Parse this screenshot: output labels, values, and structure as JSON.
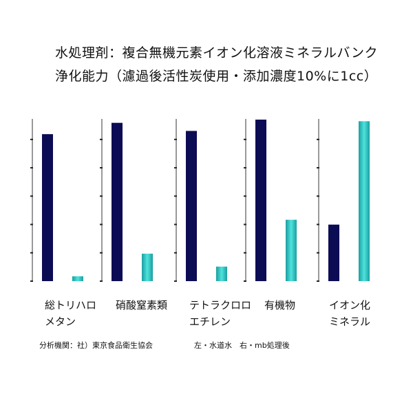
{
  "title_line1": "水処理剤：複合無機元素イオン化溶液ミネラルバンク",
  "title_line2": "浄化能力（濾過後活性炭使用・添加濃度10%に1cc）",
  "colors": {
    "left_bar": "#0c0c55",
    "right_bar_dark": "#1a9ea0",
    "right_bar_light": "#4fe3dc"
  },
  "legend_note": "左・水道水　右・mb処理後",
  "source_note": "分析機関：社）東京食品衛生協会",
  "chart_data": [
    {
      "type": "bar",
      "name_lines": [
        "総トリハロ",
        "メタン"
      ],
      "categories": [
        "水道水",
        "mb処理後"
      ],
      "values": [
        91,
        3
      ]
    },
    {
      "type": "bar",
      "name_lines": [
        "硝酸窒素類",
        ""
      ],
      "categories": [
        "水道水",
        "mb処理後"
      ],
      "values": [
        98,
        17
      ]
    },
    {
      "type": "bar",
      "name_lines": [
        "テトラクロロ",
        "エチレン"
      ],
      "categories": [
        "水道水",
        "mb処理後"
      ],
      "values": [
        93,
        9
      ]
    },
    {
      "type": "bar",
      "name_lines": [
        "有機物",
        ""
      ],
      "categories": [
        "水道水",
        "mb処理後"
      ],
      "values": [
        100,
        38
      ]
    },
    {
      "type": "bar",
      "name_lines": [
        "イオン化",
        "ミネラル"
      ],
      "categories": [
        "水道水",
        "mb処理後"
      ],
      "values": [
        35,
        99
      ]
    }
  ]
}
